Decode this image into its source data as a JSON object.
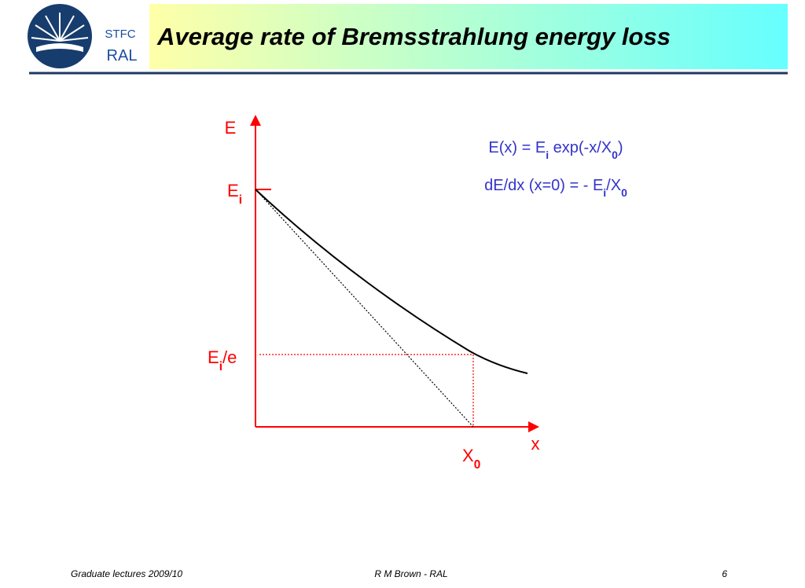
{
  "header": {
    "title": "Average rate of Bremsstrahlung energy loss",
    "logo": {
      "line1": "STFC",
      "line2": "RAL"
    }
  },
  "diagram": {
    "y_axis_label": "E",
    "x_axis_label": "x",
    "labels": {
      "ei": [
        "E",
        "i"
      ],
      "ei_over_e": [
        "E",
        "i",
        "/e"
      ],
      "x0": [
        "X",
        "0"
      ]
    },
    "formulas": [
      [
        "E(x) = E",
        "i",
        " exp(-x/X",
        "0",
        ")"
      ],
      [
        "dE/dx (x=0) = - E",
        "i",
        "/X",
        "0"
      ]
    ]
  },
  "footer": {
    "left": "Graduate lectures 2009/10",
    "center": "R M Brown - RAL",
    "page": "6"
  }
}
